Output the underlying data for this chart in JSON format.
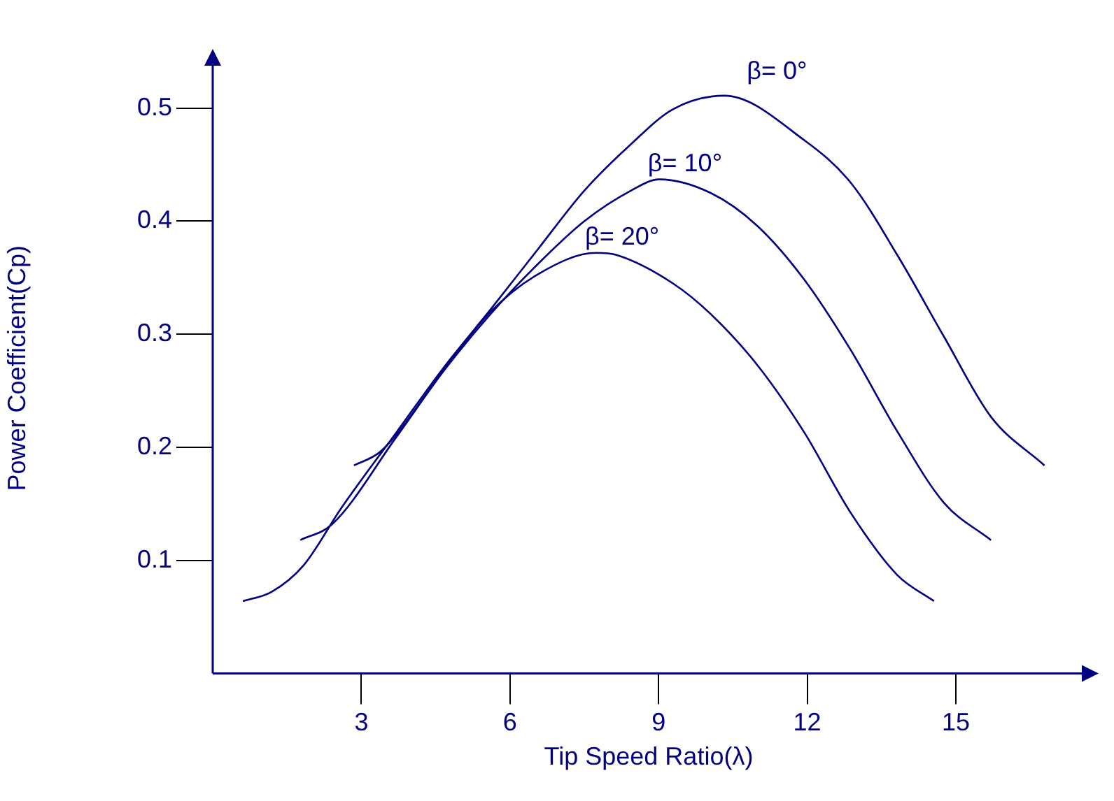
{
  "chart_data": {
    "type": "line",
    "xlabel": "Tip Speed Ratio(λ)",
    "ylabel": "Power Coefficient(Cp)",
    "xlim": [
      0,
      17.6
    ],
    "xticks": [
      3,
      6,
      9,
      12,
      15
    ],
    "ylim": [
      0,
      0.54
    ],
    "yticks": [
      0.1,
      0.2,
      0.3,
      0.4,
      0.5
    ],
    "grid": false,
    "legend": false,
    "marker": "none",
    "line_style": "solid",
    "series": [
      {
        "name": "β= 0°",
        "color": "#000080",
        "x": [
          0.61,
          1.18,
          1.84,
          2.59,
          3.72,
          4.67,
          5.61,
          6.56,
          7.5,
          8.44,
          9.29,
          10.33,
          11.93,
          12.88,
          13.82,
          14.76,
          15.71,
          16.79
        ],
        "values": [
          0.064,
          0.072,
          0.096,
          0.146,
          0.214,
          0.271,
          0.322,
          0.375,
          0.427,
          0.468,
          0.499,
          0.511,
          0.472,
          0.434,
          0.37,
          0.298,
          0.227,
          0.184
        ]
      },
      {
        "name": "β= 10°",
        "color": "#000080",
        "x": [
          1.77,
          2.41,
          3.72,
          4.67,
          5.61,
          6.56,
          7.5,
          8.44,
          9.01,
          10.05,
          10.99,
          11.93,
          12.88,
          13.82,
          14.76,
          15.71
        ],
        "values": [
          0.118,
          0.132,
          0.21,
          0.268,
          0.318,
          0.362,
          0.4,
          0.427,
          0.437,
          0.425,
          0.396,
          0.349,
          0.286,
          0.214,
          0.151,
          0.118
        ]
      },
      {
        "name": "β= 20°",
        "color": "#000080",
        "x": [
          2.85,
          3.35,
          3.72,
          4.67,
          5.61,
          6.56,
          7.74,
          8.16,
          9.29,
          10.05,
          10.99,
          11.93,
          12.88,
          13.82,
          14.56
        ],
        "values": [
          0.184,
          0.195,
          0.212,
          0.269,
          0.32,
          0.353,
          0.372,
          0.37,
          0.345,
          0.318,
          0.273,
          0.214,
          0.142,
          0.087,
          0.064
        ]
      }
    ]
  }
}
